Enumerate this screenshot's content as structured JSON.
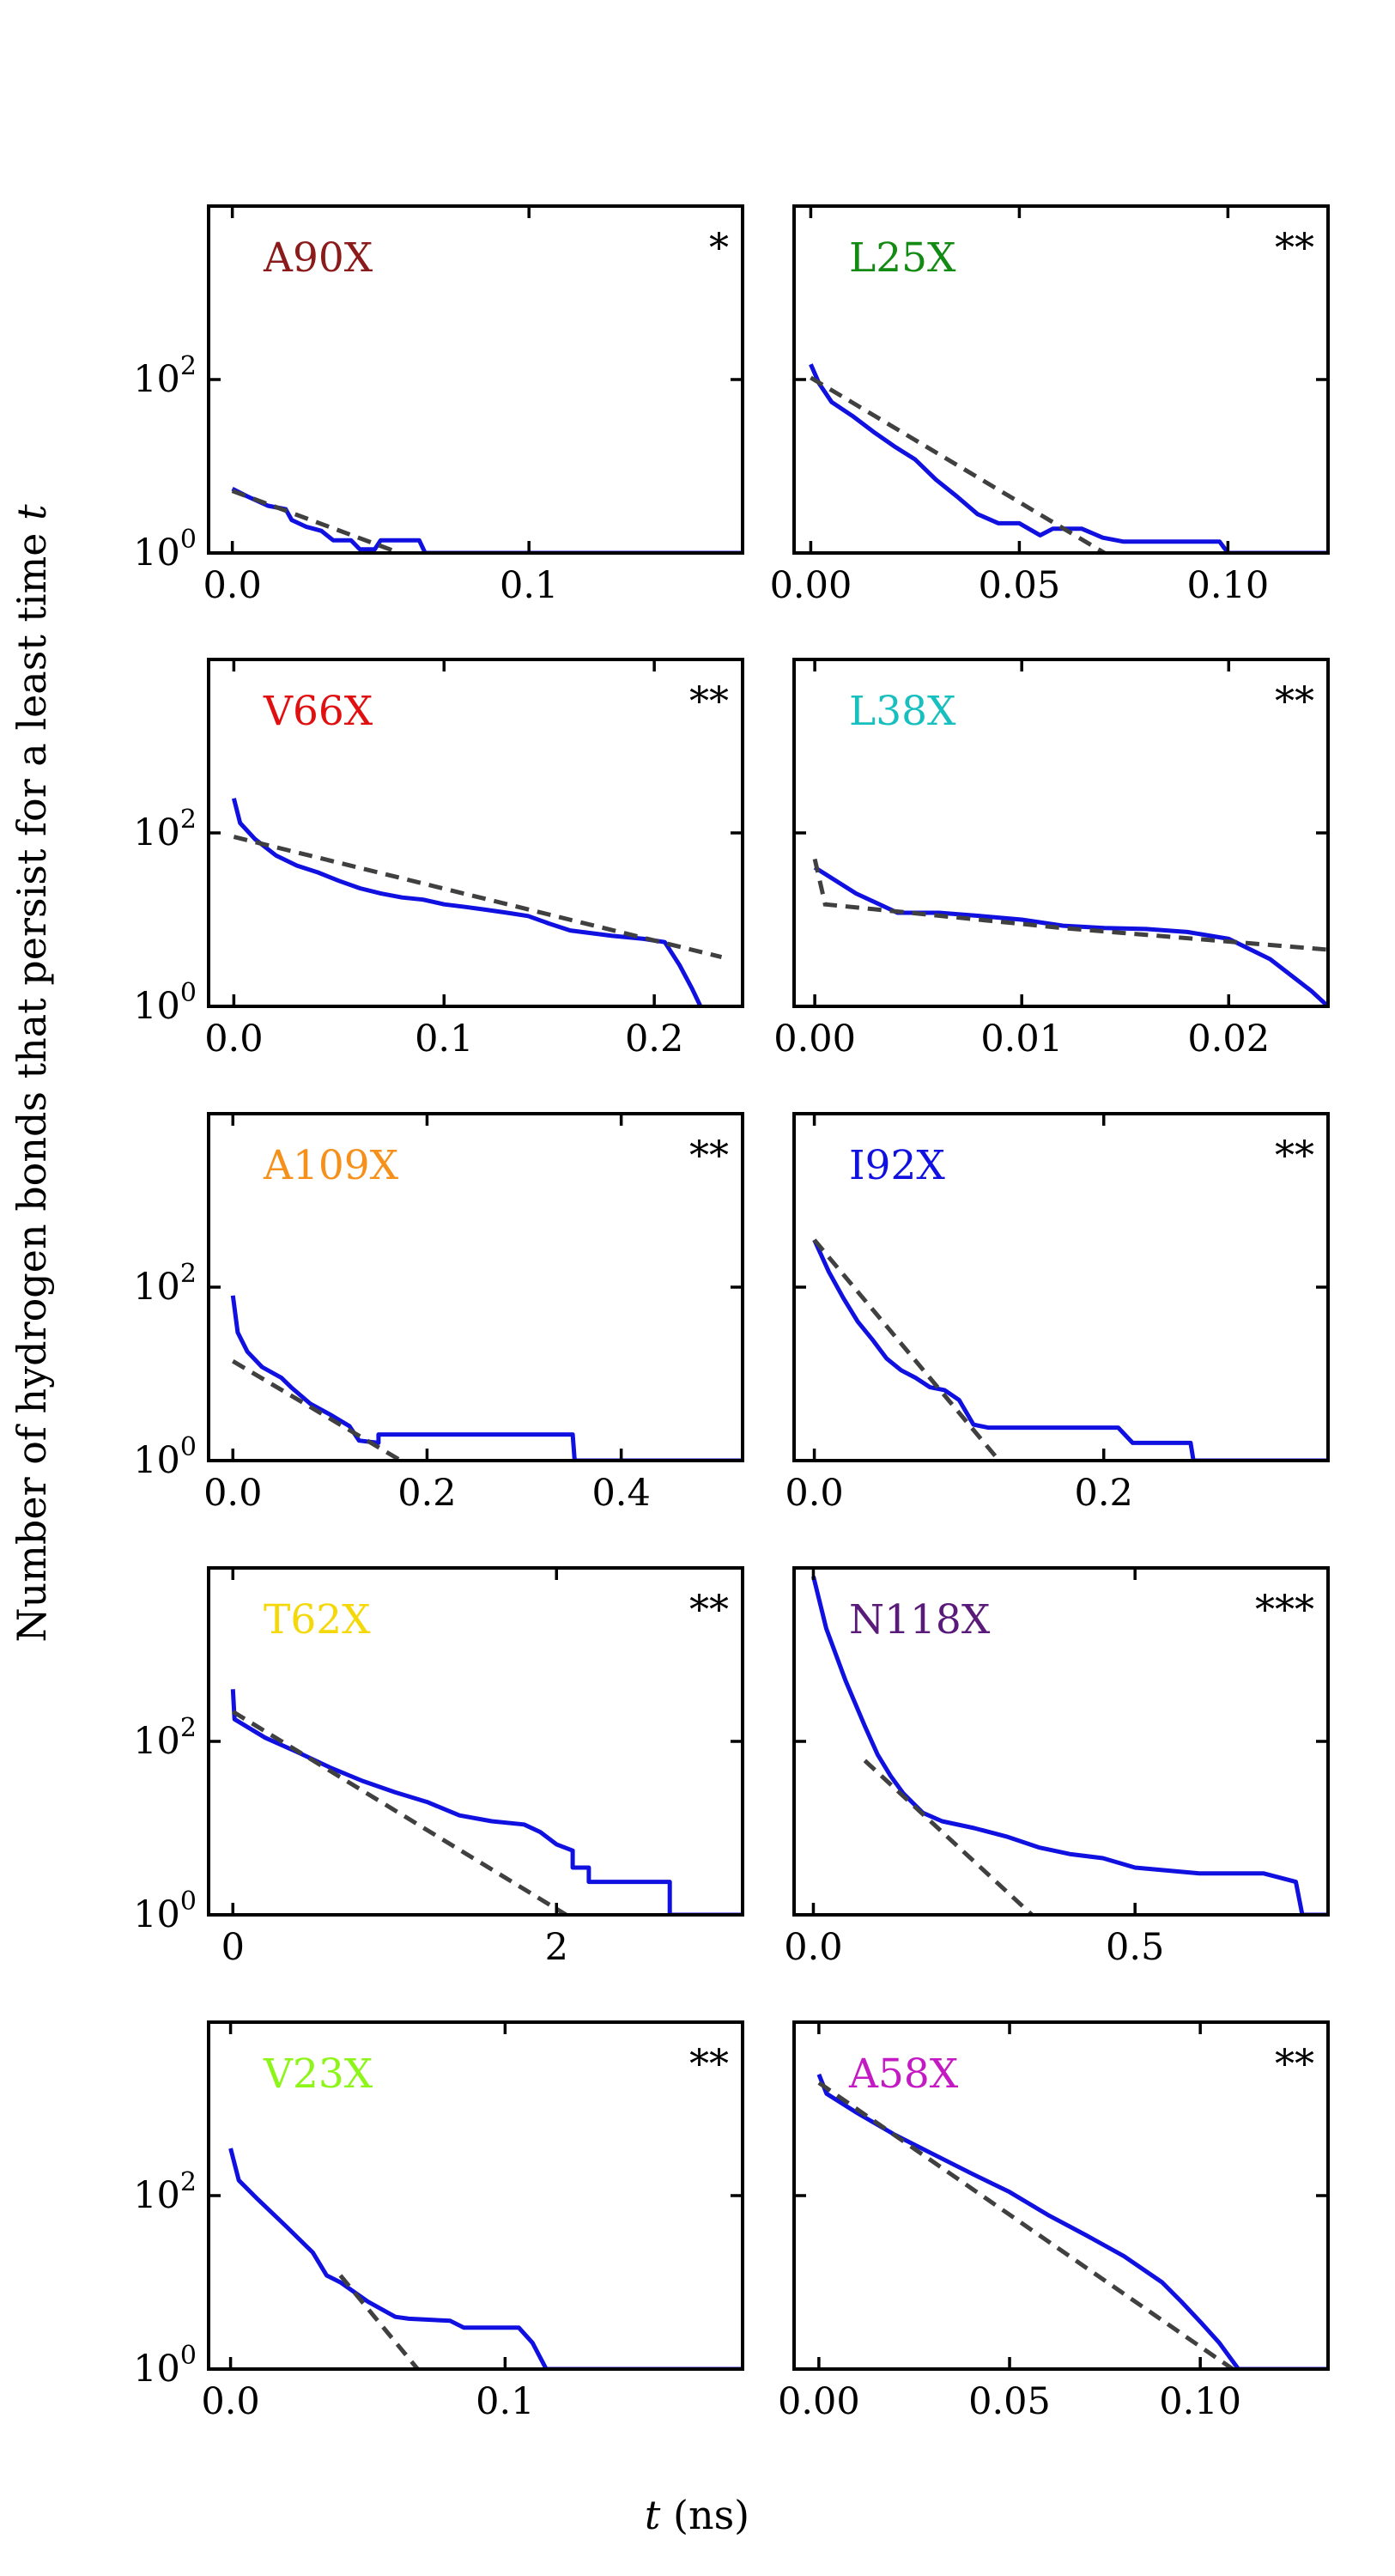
{
  "figure": {
    "ylabel_prefix": "Number of hydrogen bonds that persist for a least time",
    "ylabel_var": "t",
    "xlabel_var": "t",
    "xlabel_unit": "(ns)",
    "data_color": "#1010e0",
    "fit_color": "#404040"
  },
  "chart_data": [
    {
      "type": "line",
      "label": "A90X",
      "label_color": "#8b1a1a",
      "significance": "*",
      "yscale": "log",
      "ylim_exp": [
        0,
        4
      ],
      "ytick_exps": [
        0,
        2
      ],
      "xlim": [
        -0.008,
        0.172
      ],
      "xticks": [
        0.0,
        0.1
      ],
      "xtick_labels": [
        "0.0",
        "0.1"
      ],
      "series": [
        {
          "kind": "data",
          "points": [
            [
              0,
              5.5
            ],
            [
              0.005,
              4.5
            ],
            [
              0.012,
              3.5
            ],
            [
              0.018,
              3.2
            ],
            [
              0.02,
              2.4
            ],
            [
              0.025,
              2
            ],
            [
              0.03,
              1.8
            ],
            [
              0.034,
              1.4
            ],
            [
              0.04,
              1.4
            ],
            [
              0.043,
              1.1
            ],
            [
              0.048,
              1.1
            ],
            [
              0.05,
              1.4
            ],
            [
              0.063,
              1.4
            ],
            [
              0.065,
              1.0
            ],
            [
              0.172,
              1.0
            ]
          ]
        },
        {
          "kind": "fit",
          "points": [
            [
              0,
              5.2
            ],
            [
              0.06,
              0.9
            ]
          ]
        }
      ]
    },
    {
      "type": "line",
      "label": "L25X",
      "label_color": "#138a13",
      "significance": "**",
      "yscale": "log",
      "ylim_exp": [
        0,
        4
      ],
      "ytick_exps": [
        0,
        2
      ],
      "xlim": [
        -0.004,
        0.124
      ],
      "xticks": [
        0.0,
        0.05,
        0.1
      ],
      "xtick_labels": [
        "0.00",
        "0.05",
        "0.10"
      ],
      "series": [
        {
          "kind": "data",
          "points": [
            [
              0,
              150
            ],
            [
              0.002,
              90
            ],
            [
              0.005,
              55
            ],
            [
              0.01,
              38
            ],
            [
              0.015,
              25
            ],
            [
              0.02,
              17
            ],
            [
              0.025,
              12
            ],
            [
              0.03,
              7
            ],
            [
              0.035,
              4.5
            ],
            [
              0.04,
              2.8
            ],
            [
              0.045,
              2.2
            ],
            [
              0.05,
              2.2
            ],
            [
              0.055,
              1.6
            ],
            [
              0.058,
              1.9
            ],
            [
              0.06,
              1.9
            ],
            [
              0.065,
              1.9
            ],
            [
              0.07,
              1.5
            ],
            [
              0.075,
              1.35
            ],
            [
              0.09,
              1.35
            ],
            [
              0.098,
              1.35
            ],
            [
              0.1,
              1.0
            ],
            [
              0.124,
              1.0
            ]
          ]
        },
        {
          "kind": "fit",
          "points": [
            [
              0,
              105
            ],
            [
              0.072,
              0.9
            ]
          ]
        }
      ]
    },
    {
      "type": "line",
      "label": "V66X",
      "label_color": "#e01010",
      "significance": "**",
      "yscale": "log",
      "ylim_exp": [
        0,
        4
      ],
      "ytick_exps": [
        0,
        2
      ],
      "xlim": [
        -0.012,
        0.242
      ],
      "xticks": [
        0.0,
        0.1,
        0.2
      ],
      "xtick_labels": [
        "0.0",
        "0.1",
        "0.2"
      ],
      "series": [
        {
          "kind": "data",
          "points": [
            [
              0,
              250
            ],
            [
              0.003,
              130
            ],
            [
              0.01,
              85
            ],
            [
              0.02,
              55
            ],
            [
              0.03,
              42
            ],
            [
              0.04,
              35
            ],
            [
              0.05,
              28
            ],
            [
              0.06,
              23
            ],
            [
              0.07,
              20
            ],
            [
              0.08,
              18
            ],
            [
              0.09,
              17
            ],
            [
              0.1,
              15
            ],
            [
              0.11,
              14
            ],
            [
              0.12,
              13
            ],
            [
              0.13,
              12
            ],
            [
              0.14,
              11
            ],
            [
              0.15,
              9
            ],
            [
              0.16,
              7.5
            ],
            [
              0.18,
              6.5
            ],
            [
              0.195,
              6
            ],
            [
              0.205,
              5.5
            ],
            [
              0.212,
              3.0
            ],
            [
              0.218,
              1.6
            ],
            [
              0.222,
              1.0
            ]
          ]
        },
        {
          "kind": "fit",
          "points": [
            [
              0,
              90
            ],
            [
              0.232,
              3.7
            ]
          ]
        }
      ]
    },
    {
      "type": "line",
      "label": "L38X",
      "label_color": "#17bfbf",
      "significance": "**",
      "yscale": "log",
      "ylim_exp": [
        0,
        4
      ],
      "ytick_exps": [
        0,
        2
      ],
      "xlim": [
        -0.001,
        0.0248
      ],
      "xticks": [
        0.0,
        0.01,
        0.02
      ],
      "xtick_labels": [
        "0.00",
        "0.01",
        "0.02"
      ],
      "series": [
        {
          "kind": "data",
          "points": [
            [
              0,
              40
            ],
            [
              0.002,
              20
            ],
            [
              0.004,
              12
            ],
            [
              0.006,
              12
            ],
            [
              0.008,
              11
            ],
            [
              0.01,
              10
            ],
            [
              0.012,
              8.5
            ],
            [
              0.014,
              8
            ],
            [
              0.016,
              7.8
            ],
            [
              0.018,
              7.2
            ],
            [
              0.02,
              6
            ],
            [
              0.022,
              3.5
            ],
            [
              0.024,
              1.5
            ],
            [
              0.0248,
              1.0
            ]
          ]
        },
        {
          "kind": "fit",
          "points": [
            [
              0,
              50
            ],
            [
              0.0005,
              15
            ],
            [
              0.012,
              8.0
            ],
            [
              0.0248,
              4.5
            ]
          ]
        }
      ]
    },
    {
      "type": "line",
      "label": "A109X",
      "label_color": "#f5901a",
      "significance": "**",
      "yscale": "log",
      "ylim_exp": [
        0,
        4
      ],
      "ytick_exps": [
        0,
        2
      ],
      "xlim": [
        -0.025,
        0.525
      ],
      "xticks": [
        0.0,
        0.2,
        0.4
      ],
      "xtick_labels": [
        "0.0",
        "0.2",
        "0.4"
      ],
      "series": [
        {
          "kind": "data",
          "points": [
            [
              0,
              80
            ],
            [
              0.005,
              30
            ],
            [
              0.015,
              18
            ],
            [
              0.03,
              12
            ],
            [
              0.05,
              9
            ],
            [
              0.06,
              7
            ],
            [
              0.08,
              4.5
            ],
            [
              0.1,
              3.4
            ],
            [
              0.12,
              2.5
            ],
            [
              0.13,
              1.7
            ],
            [
              0.15,
              1.6
            ],
            [
              0.15,
              2.0
            ],
            [
              0.35,
              2.0
            ],
            [
              0.352,
              1.0
            ],
            [
              0.525,
              1.0
            ]
          ]
        },
        {
          "kind": "fit",
          "points": [
            [
              0,
              14
            ],
            [
              0.18,
              0.9
            ]
          ]
        }
      ]
    },
    {
      "type": "line",
      "label": "I92X",
      "label_color": "#1010e0",
      "significance": "**",
      "yscale": "log",
      "ylim_exp": [
        0,
        4
      ],
      "ytick_exps": [
        0,
        2
      ],
      "xlim": [
        -0.014,
        0.355
      ],
      "xticks": [
        0.0,
        0.2
      ],
      "xtick_labels": [
        "0.0",
        "0.2"
      ],
      "series": [
        {
          "kind": "data",
          "points": [
            [
              0,
              350
            ],
            [
              0.01,
              150
            ],
            [
              0.02,
              75
            ],
            [
              0.03,
              40
            ],
            [
              0.04,
              25
            ],
            [
              0.05,
              15
            ],
            [
              0.06,
              11
            ],
            [
              0.07,
              9
            ],
            [
              0.08,
              7
            ],
            [
              0.09,
              6.5
            ],
            [
              0.1,
              5
            ],
            [
              0.11,
              2.6
            ],
            [
              0.12,
              2.4
            ],
            [
              0.21,
              2.4
            ],
            [
              0.22,
              1.6
            ],
            [
              0.26,
              1.6
            ],
            [
              0.262,
              1.0
            ],
            [
              0.355,
              1.0
            ]
          ]
        },
        {
          "kind": "fit",
          "points": [
            [
              0,
              350
            ],
            [
              0.13,
              0.9
            ]
          ]
        }
      ]
    },
    {
      "type": "line",
      "label": "T62X",
      "label_color": "#f5d80a",
      "significance": "**",
      "yscale": "log",
      "ylim_exp": [
        0,
        4
      ],
      "ytick_exps": [
        0,
        2
      ],
      "xlim": [
        -0.15,
        3.15
      ],
      "xticks": [
        0,
        2
      ],
      "xtick_labels": [
        "0",
        "2"
      ],
      "series": [
        {
          "kind": "data",
          "points": [
            [
              0,
              400
            ],
            [
              0.01,
              180
            ],
            [
              0.2,
              110
            ],
            [
              0.4,
              75
            ],
            [
              0.6,
              50
            ],
            [
              0.8,
              35
            ],
            [
              1.0,
              26
            ],
            [
              1.2,
              20
            ],
            [
              1.4,
              14
            ],
            [
              1.6,
              12
            ],
            [
              1.8,
              11
            ],
            [
              1.9,
              9
            ],
            [
              2.0,
              6.5
            ],
            [
              2.1,
              5.5
            ],
            [
              2.1,
              3.5
            ],
            [
              2.2,
              3.5
            ],
            [
              2.2,
              2.4
            ],
            [
              2.7,
              2.4
            ],
            [
              2.7,
              1.0
            ],
            [
              3.15,
              1.0
            ]
          ]
        },
        {
          "kind": "fit",
          "points": [
            [
              0,
              220
            ],
            [
              2.1,
              0.9
            ]
          ]
        }
      ]
    },
    {
      "type": "line",
      "label": "N118X",
      "label_color": "#5a1a7a",
      "significance": "***",
      "yscale": "log",
      "ylim_exp": [
        0,
        4
      ],
      "ytick_exps": [
        0,
        2
      ],
      "xlim": [
        -0.03,
        0.8
      ],
      "xticks": [
        0.0,
        0.5
      ],
      "xtick_labels": [
        "0.0",
        "0.5"
      ],
      "series": [
        {
          "kind": "data",
          "points": [
            [
              0,
              8000
            ],
            [
              0.02,
              2000
            ],
            [
              0.05,
              500
            ],
            [
              0.08,
              150
            ],
            [
              0.1,
              70
            ],
            [
              0.12,
              40
            ],
            [
              0.14,
              25
            ],
            [
              0.17,
              15
            ],
            [
              0.2,
              12
            ],
            [
              0.25,
              10
            ],
            [
              0.3,
              8
            ],
            [
              0.35,
              6
            ],
            [
              0.4,
              5
            ],
            [
              0.45,
              4.5
            ],
            [
              0.5,
              3.5
            ],
            [
              0.6,
              3
            ],
            [
              0.7,
              3
            ],
            [
              0.75,
              2.4
            ],
            [
              0.76,
              1.0
            ],
            [
              0.8,
              1.0
            ]
          ]
        },
        {
          "kind": "fit",
          "points": [
            [
              0.08,
              60
            ],
            [
              0.35,
              0.85
            ]
          ]
        }
      ]
    },
    {
      "type": "line",
      "label": "V23X",
      "label_color": "#8ef51a",
      "significance": "**",
      "yscale": "log",
      "ylim_exp": [
        0,
        4
      ],
      "ytick_exps": [
        0,
        2
      ],
      "xlim": [
        -0.008,
        0.1865
      ],
      "xticks": [
        0.0,
        0.1
      ],
      "xtick_labels": [
        "0.0",
        "0.1"
      ],
      "series": [
        {
          "kind": "data",
          "points": [
            [
              0,
              350
            ],
            [
              0.003,
              150
            ],
            [
              0.01,
              90
            ],
            [
              0.02,
              45
            ],
            [
              0.03,
              22
            ],
            [
              0.035,
              12
            ],
            [
              0.04,
              10
            ],
            [
              0.05,
              6
            ],
            [
              0.06,
              4
            ],
            [
              0.065,
              3.8
            ],
            [
              0.08,
              3.6
            ],
            [
              0.085,
              3
            ],
            [
              0.105,
              3
            ],
            [
              0.11,
              2.0
            ],
            [
              0.115,
              1.0
            ],
            [
              0.1865,
              1.0
            ]
          ]
        },
        {
          "kind": "fit",
          "points": [
            [
              0.04,
              12
            ],
            [
              0.07,
              0.85
            ]
          ]
        }
      ]
    },
    {
      "type": "line",
      "label": "A58X",
      "label_color": "#c41ac4",
      "significance": "**",
      "yscale": "log",
      "ylim_exp": [
        0,
        4
      ],
      "ytick_exps": [
        0,
        2
      ],
      "xlim": [
        -0.0065,
        0.1335
      ],
      "xticks": [
        0.0,
        0.05,
        0.1
      ],
      "xtick_labels": [
        "0.00",
        "0.05",
        "0.10"
      ],
      "series": [
        {
          "kind": "data",
          "points": [
            [
              0,
              2500
            ],
            [
              0.002,
              1500
            ],
            [
              0.01,
              900
            ],
            [
              0.02,
              500
            ],
            [
              0.03,
              300
            ],
            [
              0.04,
              180
            ],
            [
              0.05,
              110
            ],
            [
              0.06,
              60
            ],
            [
              0.07,
              35
            ],
            [
              0.08,
              20
            ],
            [
              0.09,
              10
            ],
            [
              0.095,
              6
            ],
            [
              0.1,
              3.5
            ],
            [
              0.105,
              2
            ],
            [
              0.11,
              1.0
            ],
            [
              0.1335,
              1.0
            ]
          ]
        },
        {
          "kind": "fit",
          "points": [
            [
              0,
              2000
            ],
            [
              0.11,
              0.9
            ]
          ]
        }
      ]
    }
  ]
}
